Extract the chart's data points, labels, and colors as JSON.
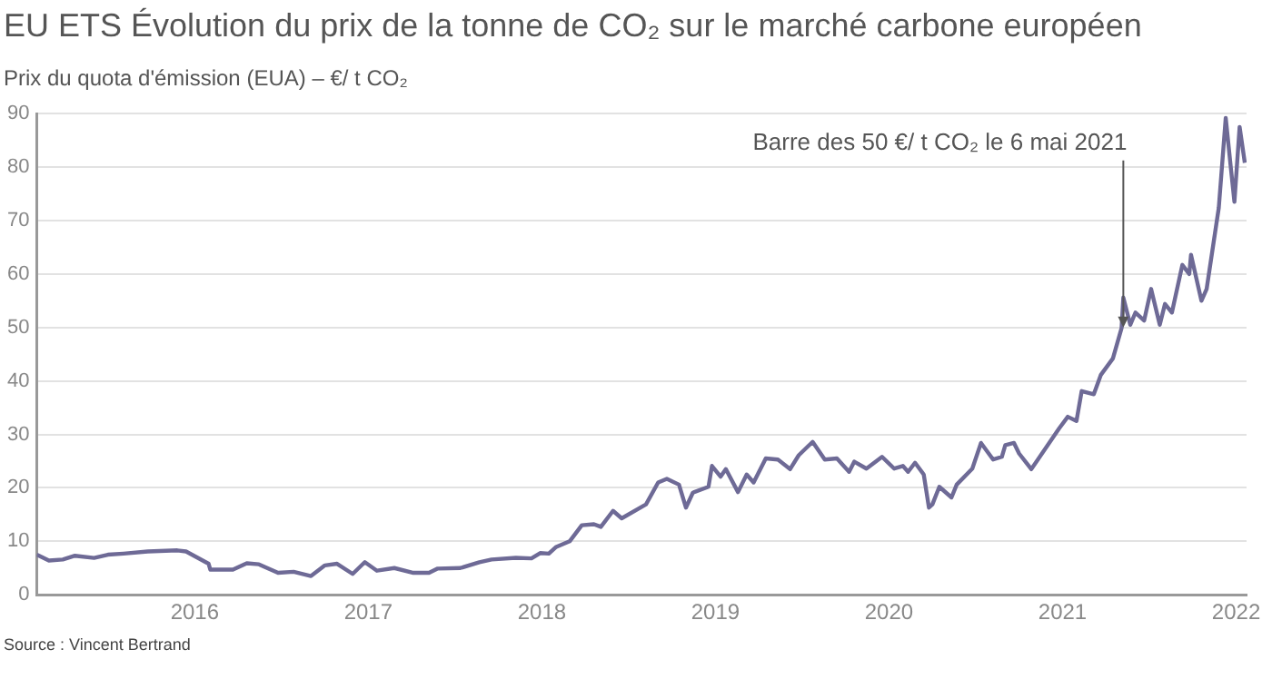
{
  "chart_data": {
    "type": "line",
    "title": "EU ETS Évolution du prix de la tonne de CO₂ sur le marché carbone européen",
    "ylabel": "Prix du quota d'émission (EUA) – €/ t CO₂",
    "annotations": [
      {
        "text": "Barre des 50 €/ t CO₂ le 6 mai 2021",
        "x": 2021.35,
        "y": 50
      },
      "Source : Vincent Bertrand"
    ],
    "xlim": [
      2015.09,
      2022.06
    ],
    "xticks": [
      2016,
      2017,
      2018,
      2019,
      2020,
      2021,
      2022
    ],
    "ylim": [
      0,
      90
    ],
    "yticks": [
      0,
      10,
      20,
      30,
      40,
      50,
      60,
      70,
      80,
      90
    ],
    "grid": "y",
    "legend": false,
    "marker": "none",
    "line_style": "solid",
    "series": [
      {
        "color": "#6e6a96",
        "x": [
          2015.09,
          2015.16,
          2015.24,
          2015.31,
          2015.42,
          2015.5,
          2015.59,
          2015.73,
          2015.9,
          2015.95,
          2016.08,
          2016.09,
          2016.22,
          2016.3,
          2016.37,
          2016.48,
          2016.57,
          2016.67,
          2016.75,
          2016.82,
          2016.91,
          2016.98,
          2017.05,
          2017.15,
          2017.26,
          2017.35,
          2017.4,
          2017.53,
          2017.64,
          2017.71,
          2017.85,
          2017.94,
          2017.99,
          2018.04,
          2018.08,
          2018.16,
          2018.23,
          2018.3,
          2018.34,
          2018.41,
          2018.46,
          2018.6,
          2018.67,
          2018.72,
          2018.79,
          2018.83,
          2018.87,
          2018.96,
          2018.98,
          2019.03,
          2019.06,
          2019.13,
          2019.18,
          2019.22,
          2019.29,
          2019.36,
          2019.43,
          2019.48,
          2019.56,
          2019.63,
          2019.7,
          2019.77,
          2019.8,
          2019.87,
          2019.96,
          2020.03,
          2020.08,
          2020.11,
          2020.15,
          2020.2,
          2020.23,
          2020.25,
          2020.29,
          2020.36,
          2020.39,
          2020.48,
          2020.53,
          2020.6,
          2020.65,
          2020.67,
          2020.72,
          2020.75,
          2020.82,
          2020.98,
          2021.03,
          2021.08,
          2021.11,
          2021.18,
          2021.22,
          2021.29,
          2021.34,
          2021.35,
          2021.39,
          2021.42,
          2021.47,
          2021.51,
          2021.56,
          2021.59,
          2021.63,
          2021.69,
          2021.73,
          2021.74,
          2021.8,
          2021.83,
          2021.9,
          2021.94,
          2021.97,
          2021.99,
          2022.02,
          2022.05
        ],
        "values": [
          7.5,
          6.4,
          6.6,
          7.3,
          6.9,
          7.5,
          7.7,
          8.1,
          8.3,
          8.1,
          5.8,
          4.7,
          4.7,
          5.9,
          5.7,
          4.1,
          4.3,
          3.5,
          5.5,
          5.8,
          3.9,
          6.1,
          4.5,
          5.0,
          4.1,
          4.1,
          4.9,
          5.0,
          6.1,
          6.6,
          6.9,
          6.8,
          7.8,
          7.7,
          8.9,
          10,
          13,
          13.2,
          12.7,
          15.7,
          14.3,
          16.9,
          21.0,
          21.7,
          20.6,
          16.3,
          19.1,
          20.2,
          24.1,
          22.1,
          23.5,
          19.2,
          22.5,
          21,
          25.5,
          25.3,
          23.5,
          26.1,
          28.6,
          25.3,
          25.5,
          23,
          24.9,
          23.6,
          25.8,
          23.6,
          24.1,
          23,
          24.7,
          22.5,
          16.3,
          16.9,
          20.2,
          18.2,
          20.6,
          23.6,
          28.4,
          25.3,
          25.8,
          28,
          28.4,
          26.4,
          23.5,
          31.1,
          33.3,
          32.5,
          38.1,
          37.5,
          41.1,
          44.2,
          49.9,
          55.6,
          50.5,
          52.8,
          51.3,
          57.2,
          50.5,
          54.4,
          52.8,
          61.7,
          60,
          63.6,
          55,
          57.2,
          72.4,
          89.2,
          79.7,
          73.5,
          87.5,
          80.8
        ]
      }
    ]
  }
}
